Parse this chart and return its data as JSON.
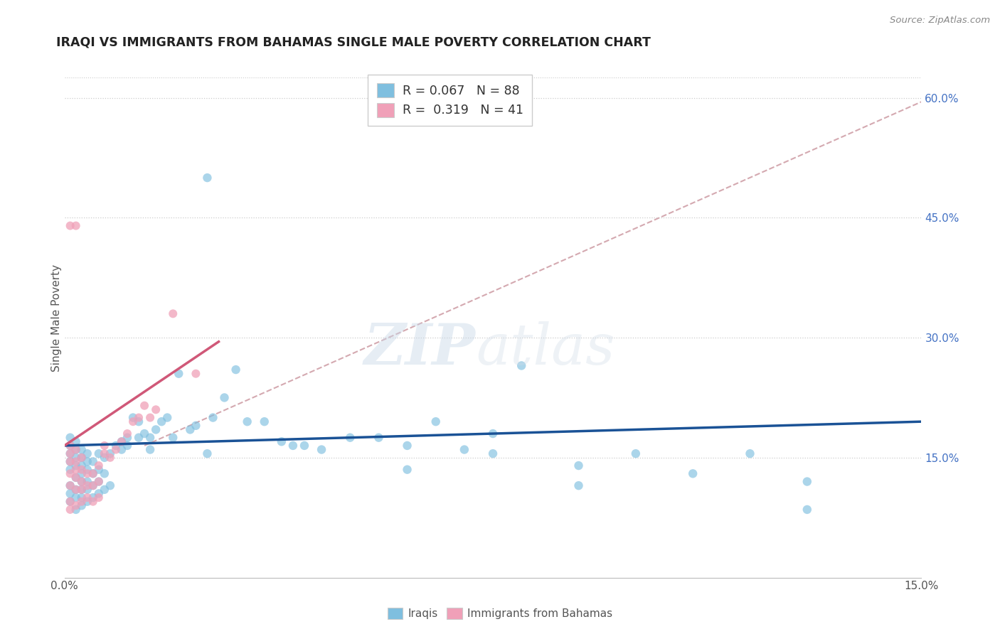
{
  "title": "IRAQI VS IMMIGRANTS FROM BAHAMAS SINGLE MALE POVERTY CORRELATION CHART",
  "source": "Source: ZipAtlas.com",
  "ylabel": "Single Male Poverty",
  "ytick_vals": [
    0.15,
    0.3,
    0.45,
    0.6
  ],
  "ytick_labels": [
    "15.0%",
    "30.0%",
    "45.0%",
    "60.0%"
  ],
  "xlim": [
    0.0,
    0.15
  ],
  "ylim": [
    0.0,
    0.65
  ],
  "iraqis_color": "#7fbfdf",
  "bahamas_color": "#f0a0b8",
  "iraqis_line_color": "#1a5296",
  "bahamas_line_color": "#d05878",
  "dash_line_color": "#d0a0a8",
  "iraqis_scatter": [
    [
      0.001,
      0.095
    ],
    [
      0.001,
      0.105
    ],
    [
      0.001,
      0.115
    ],
    [
      0.001,
      0.135
    ],
    [
      0.001,
      0.145
    ],
    [
      0.001,
      0.155
    ],
    [
      0.001,
      0.165
    ],
    [
      0.001,
      0.175
    ],
    [
      0.002,
      0.085
    ],
    [
      0.002,
      0.1
    ],
    [
      0.002,
      0.11
    ],
    [
      0.002,
      0.125
    ],
    [
      0.002,
      0.14
    ],
    [
      0.002,
      0.15
    ],
    [
      0.002,
      0.16
    ],
    [
      0.002,
      0.17
    ],
    [
      0.003,
      0.09
    ],
    [
      0.003,
      0.1
    ],
    [
      0.003,
      0.11
    ],
    [
      0.003,
      0.12
    ],
    [
      0.003,
      0.13
    ],
    [
      0.003,
      0.14
    ],
    [
      0.003,
      0.15
    ],
    [
      0.003,
      0.16
    ],
    [
      0.004,
      0.095
    ],
    [
      0.004,
      0.11
    ],
    [
      0.004,
      0.12
    ],
    [
      0.004,
      0.135
    ],
    [
      0.004,
      0.145
    ],
    [
      0.004,
      0.155
    ],
    [
      0.005,
      0.1
    ],
    [
      0.005,
      0.115
    ],
    [
      0.005,
      0.13
    ],
    [
      0.005,
      0.145
    ],
    [
      0.006,
      0.105
    ],
    [
      0.006,
      0.12
    ],
    [
      0.006,
      0.135
    ],
    [
      0.006,
      0.155
    ],
    [
      0.007,
      0.11
    ],
    [
      0.007,
      0.13
    ],
    [
      0.007,
      0.15
    ],
    [
      0.008,
      0.115
    ],
    [
      0.008,
      0.155
    ],
    [
      0.009,
      0.165
    ],
    [
      0.01,
      0.16
    ],
    [
      0.01,
      0.17
    ],
    [
      0.011,
      0.165
    ],
    [
      0.011,
      0.175
    ],
    [
      0.012,
      0.2
    ],
    [
      0.013,
      0.175
    ],
    [
      0.013,
      0.195
    ],
    [
      0.014,
      0.18
    ],
    [
      0.015,
      0.16
    ],
    [
      0.015,
      0.175
    ],
    [
      0.016,
      0.185
    ],
    [
      0.017,
      0.195
    ],
    [
      0.018,
      0.2
    ],
    [
      0.019,
      0.175
    ],
    [
      0.02,
      0.255
    ],
    [
      0.022,
      0.185
    ],
    [
      0.023,
      0.19
    ],
    [
      0.025,
      0.155
    ],
    [
      0.026,
      0.2
    ],
    [
      0.028,
      0.225
    ],
    [
      0.03,
      0.26
    ],
    [
      0.032,
      0.195
    ],
    [
      0.035,
      0.195
    ],
    [
      0.038,
      0.17
    ],
    [
      0.04,
      0.165
    ],
    [
      0.042,
      0.165
    ],
    [
      0.045,
      0.16
    ],
    [
      0.05,
      0.175
    ],
    [
      0.055,
      0.175
    ],
    [
      0.06,
      0.165
    ],
    [
      0.065,
      0.195
    ],
    [
      0.07,
      0.16
    ],
    [
      0.075,
      0.18
    ],
    [
      0.08,
      0.265
    ],
    [
      0.09,
      0.14
    ],
    [
      0.1,
      0.155
    ],
    [
      0.11,
      0.13
    ],
    [
      0.12,
      0.155
    ],
    [
      0.13,
      0.12
    ],
    [
      0.025,
      0.5
    ],
    [
      0.06,
      0.135
    ],
    [
      0.075,
      0.155
    ],
    [
      0.13,
      0.085
    ],
    [
      0.09,
      0.115
    ]
  ],
  "bahamas_scatter": [
    [
      0.001,
      0.085
    ],
    [
      0.001,
      0.095
    ],
    [
      0.001,
      0.115
    ],
    [
      0.001,
      0.13
    ],
    [
      0.001,
      0.145
    ],
    [
      0.001,
      0.155
    ],
    [
      0.001,
      0.165
    ],
    [
      0.002,
      0.09
    ],
    [
      0.002,
      0.11
    ],
    [
      0.002,
      0.125
    ],
    [
      0.002,
      0.135
    ],
    [
      0.002,
      0.145
    ],
    [
      0.002,
      0.16
    ],
    [
      0.003,
      0.095
    ],
    [
      0.003,
      0.11
    ],
    [
      0.003,
      0.12
    ],
    [
      0.003,
      0.135
    ],
    [
      0.003,
      0.15
    ],
    [
      0.004,
      0.1
    ],
    [
      0.004,
      0.115
    ],
    [
      0.004,
      0.13
    ],
    [
      0.005,
      0.095
    ],
    [
      0.005,
      0.115
    ],
    [
      0.005,
      0.13
    ],
    [
      0.006,
      0.1
    ],
    [
      0.006,
      0.12
    ],
    [
      0.006,
      0.14
    ],
    [
      0.007,
      0.155
    ],
    [
      0.007,
      0.165
    ],
    [
      0.008,
      0.15
    ],
    [
      0.009,
      0.16
    ],
    [
      0.01,
      0.17
    ],
    [
      0.011,
      0.18
    ],
    [
      0.012,
      0.195
    ],
    [
      0.013,
      0.2
    ],
    [
      0.014,
      0.215
    ],
    [
      0.015,
      0.2
    ],
    [
      0.016,
      0.21
    ],
    [
      0.019,
      0.33
    ],
    [
      0.023,
      0.255
    ],
    [
      0.001,
      0.44
    ],
    [
      0.002,
      0.44
    ]
  ],
  "iraqis_trend": [
    0.0,
    0.15,
    0.165,
    0.195
  ],
  "bahamas_trend": [
    0.0,
    0.027,
    0.165,
    0.295
  ],
  "dash_trend": [
    0.014,
    0.15,
    0.165,
    0.595
  ]
}
